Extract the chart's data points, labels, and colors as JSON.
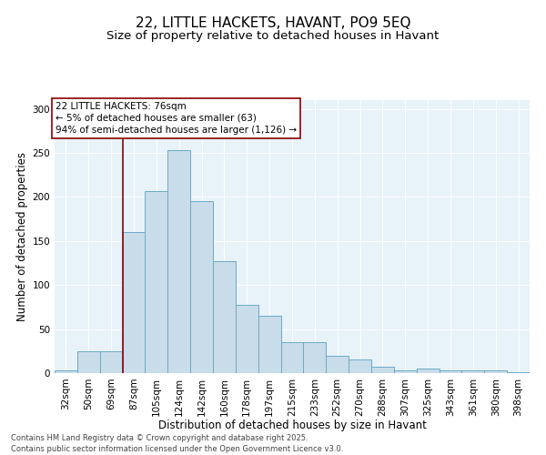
{
  "title": "22, LITTLE HACKETS, HAVANT, PO9 5EQ",
  "subtitle": "Size of property relative to detached houses in Havant",
  "xlabel": "Distribution of detached houses by size in Havant",
  "ylabel": "Number of detached properties",
  "categories": [
    "32sqm",
    "50sqm",
    "69sqm",
    "87sqm",
    "105sqm",
    "124sqm",
    "142sqm",
    "160sqm",
    "178sqm",
    "197sqm",
    "215sqm",
    "233sqm",
    "252sqm",
    "270sqm",
    "288sqm",
    "307sqm",
    "325sqm",
    "343sqm",
    "361sqm",
    "380sqm",
    "398sqm"
  ],
  "values": [
    3,
    25,
    25,
    160,
    207,
    253,
    195,
    127,
    77,
    65,
    35,
    35,
    20,
    16,
    7,
    3,
    5,
    3,
    3,
    3,
    1
  ],
  "bar_color": "#c9dcea",
  "bar_edge_color": "#6aaac8",
  "vline_x_index": 2.5,
  "vline_color": "#8b0000",
  "annotation_box_text": "22 LITTLE HACKETS: 76sqm\n← 5% of detached houses are smaller (63)\n94% of semi-detached houses are larger (1,126) →",
  "annotation_box_color": "#8b0000",
  "ylim": [
    0,
    310
  ],
  "yticks": [
    0,
    50,
    100,
    150,
    200,
    250,
    300
  ],
  "background_color": "#e8f2f9",
  "footer_line1": "Contains HM Land Registry data © Crown copyright and database right 2025.",
  "footer_line2": "Contains public sector information licensed under the Open Government Licence v3.0.",
  "title_fontsize": 11,
  "subtitle_fontsize": 9.5,
  "label_fontsize": 8.5,
  "tick_fontsize": 7.5,
  "annotation_fontsize": 7.5,
  "footer_fontsize": 6.0
}
